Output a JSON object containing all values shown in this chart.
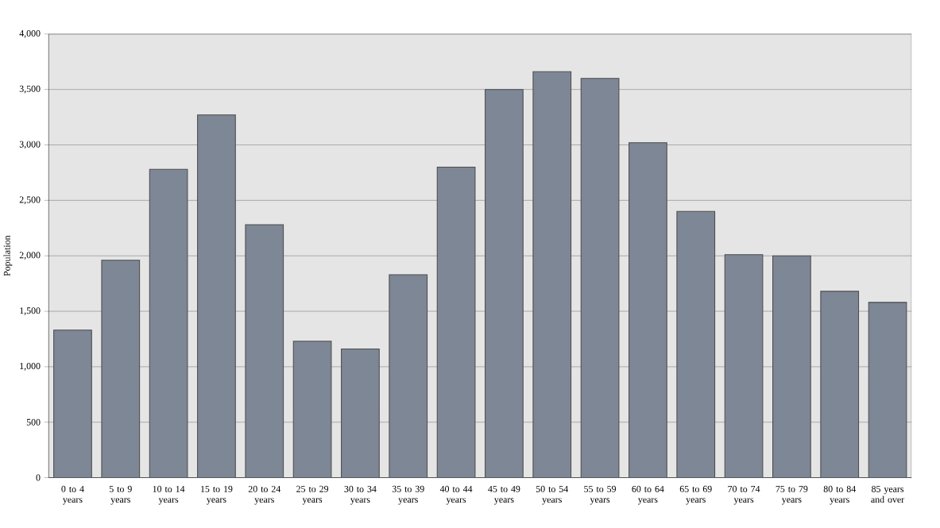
{
  "chart_data": {
    "type": "bar",
    "ylabel": "Population",
    "categories": [
      "0 to 4 years",
      "5 to 9 years",
      "10 to 14 years",
      "15 to 19 years",
      "20 to 24 years",
      "25 to 29 years",
      "30 to 34 years",
      "35 to 39 years",
      "40 to 44 years",
      "45 to 49 years",
      "50 to 54 years",
      "55 to 59 years",
      "60 to 64 years",
      "65 to 69 years",
      "70 to 74 years",
      "75 to 79 years",
      "80 to 84 years",
      "85 years and over"
    ],
    "values": [
      1330,
      1960,
      2780,
      3270,
      2280,
      1230,
      1160,
      1830,
      2800,
      3500,
      3660,
      3600,
      3020,
      2400,
      2010,
      2000,
      1680,
      1580
    ],
    "color": "#7d8796",
    "ylim": [
      0,
      4000
    ],
    "yticks": [
      0,
      {
        "value": 500,
        "label": "500"
      },
      {
        "value": 1000,
        "label": "1,000"
      },
      {
        "value": 1500,
        "label": "1,500"
      },
      {
        "value": 2000,
        "label": "2,000"
      },
      {
        "value": 2500,
        "label": "2,500"
      },
      {
        "value": 3000,
        "label": "3,000"
      },
      {
        "value": 3500,
        "label": "3,500"
      },
      {
        "value": 4000,
        "label": "4,000"
      }
    ],
    "grid": "y"
  }
}
